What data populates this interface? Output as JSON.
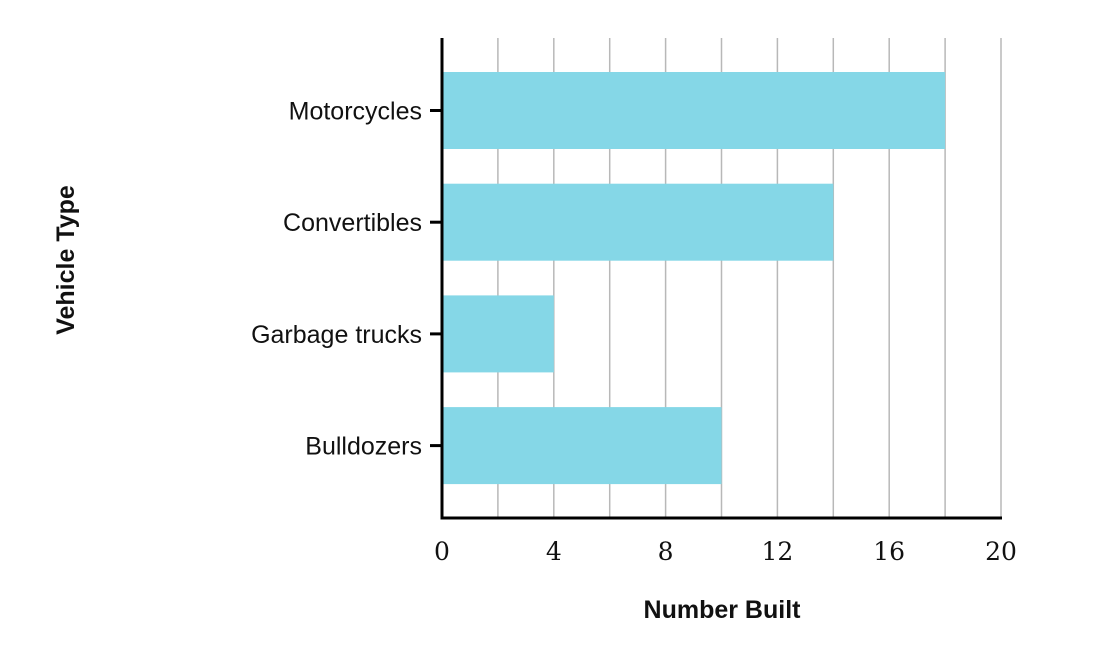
{
  "chart_data": {
    "type": "bar",
    "orientation": "horizontal",
    "categories": [
      "Motorcycles",
      "Convertibles",
      "Garbage trucks",
      "Bulldozers"
    ],
    "values": [
      18,
      14,
      4,
      10
    ],
    "xlabel": "Number Built",
    "ylabel": "Vehicle Type",
    "xlim": [
      0,
      20
    ],
    "xticks": [
      0,
      4,
      8,
      12,
      16,
      20
    ],
    "grid": true,
    "bar_color": "#85d7e7"
  }
}
